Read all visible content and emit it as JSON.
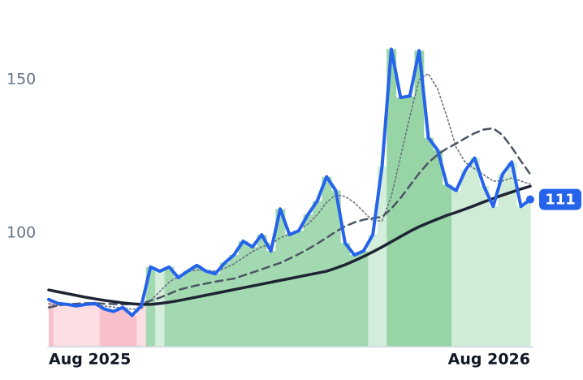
{
  "chart_data": {
    "type": "line",
    "categories": [
      "Aug 2025",
      null,
      null,
      null,
      null,
      null,
      null,
      null,
      null,
      null,
      null,
      null,
      null,
      null,
      null,
      null,
      null,
      null,
      null,
      null,
      null,
      null,
      null,
      null,
      null,
      null,
      null,
      null,
      null,
      null,
      null,
      null,
      null,
      null,
      null,
      null,
      null,
      null,
      null,
      null,
      null,
      null,
      null,
      null,
      null,
      null,
      null,
      null,
      null,
      null,
      null,
      null,
      "Aug 2026"
    ],
    "ylim": [
      63,
      176
    ],
    "yticks": [
      100,
      150
    ],
    "fill_colors": [
      "#f7c0cb",
      "#fcdde3",
      "#fcdde3",
      "#fcdde3",
      "#fcdde3",
      "#fcdde3",
      "#f7c0cb",
      "#f7c0cb",
      "#f7c0cb",
      "#f7c0cb",
      "#fcdde3",
      "#a3d9b1",
      "#d4eedb",
      "#a3d9b1",
      "#a3d9b1",
      "#a3d9b1",
      "#a3d9b1",
      "#a3d9b1",
      "#a3d9b1",
      "#a3d9b1",
      "#a3d9b1",
      "#a3d9b1",
      "#a3d9b1",
      "#a3d9b1",
      "#a3d9b1",
      "#a3d9b1",
      "#a3d9b1",
      "#a3d9b1",
      "#a3d9b1",
      "#a3d9b1",
      "#a3d9b1",
      "#a3d9b1",
      "#a3d9b1",
      "#a3d9b1",
      "#a3d9b1",
      "#d4eedb",
      "#d4eedb",
      "#97d4a6",
      "#97d4a6",
      "#97d4a6",
      "#97d4a6",
      "#97d4a6",
      "#97d4a6",
      "#97d4a6",
      "#d0ecd7",
      "#d0ecd7",
      "#d0ecd7",
      "#d0ecd7",
      "#d0ecd7",
      "#d0ecd7",
      "#d0ecd7",
      "#d0ecd7",
      "#d0ecd7"
    ],
    "series": [
      {
        "color": "#2563eb",
        "width": 4,
        "dash": "none",
        "values": [
          78.4,
          77.1,
          76.8,
          76.3,
          76.8,
          77.1,
          75.3,
          74.5,
          75.8,
          73.2,
          76.3,
          89,
          87.6,
          89,
          85.5,
          87.6,
          89.5,
          87.6,
          86.8,
          90.3,
          92.9,
          97.4,
          95.5,
          99.5,
          94.2,
          107.9,
          99.5,
          100.8,
          106.1,
          110.5,
          118.4,
          113.9,
          96.8,
          92.9,
          94.2,
          99.5,
          121.8,
          160,
          144.2,
          144.7,
          159.5,
          131.1,
          127.1,
          115.8,
          113.9,
          120.5,
          124.5,
          115.3,
          108.7,
          119.2,
          123.2,
          108.7,
          111
        ],
        "value_label_index": 52
      },
      {
        "color": "#1e2433",
        "width": 3.5,
        "dash": "none",
        "values": [
          81.5,
          80.9,
          80.3,
          79.7,
          79.1,
          78.6,
          78.1,
          77.7,
          77.3,
          77.0,
          76.8,
          76.8,
          77.1,
          77.5,
          78.0,
          78.6,
          79.2,
          79.8,
          80.4,
          81.0,
          81.6,
          82.2,
          82.8,
          83.4,
          84.0,
          84.6,
          85.2,
          85.8,
          86.4,
          87.0,
          87.6,
          88.6,
          89.7,
          91.0,
          92.4,
          93.9,
          95.5,
          97.2,
          98.9,
          100.6,
          102.1,
          103.4,
          104.6,
          105.8,
          106.8,
          107.9,
          109.0,
          110.2,
          111.3,
          112.4,
          113.4,
          114.4,
          115.3
        ]
      },
      {
        "color": "#4b5563",
        "width": 2.5,
        "dash": "9 6",
        "values": [
          75.8,
          76.4,
          76.8,
          77.0,
          77.2,
          77.2,
          77.0,
          76.9,
          76.8,
          76.9,
          77.0,
          78.0,
          79.0,
          80.2,
          81.5,
          82.3,
          83.0,
          83.6,
          84.2,
          84.7,
          85.2,
          86.2,
          87.2,
          88.2,
          89.3,
          90.3,
          91.7,
          93.2,
          94.8,
          96.6,
          98.5,
          100.5,
          102.2,
          103.5,
          104.4,
          104.9,
          105.3,
          108.0,
          111.5,
          115.5,
          119.5,
          123.0,
          125.6,
          127.6,
          129.2,
          131.0,
          132.6,
          133.8,
          134.2,
          132.0,
          128.0,
          123.5,
          119.2
        ]
      },
      {
        "color": "#6b7280",
        "width": 1.6,
        "dash": "2 3",
        "values": [
          77,
          76.5,
          76.8,
          77,
          76.6,
          76.6,
          76.2,
          75.9,
          75.6,
          75.2,
          75.5,
          78,
          81,
          84,
          86,
          87.5,
          88,
          87.8,
          87.7,
          88.5,
          90,
          92,
          94,
          95.5,
          96.5,
          98.5,
          99.8,
          101,
          103,
          106,
          110,
          112.5,
          112,
          110,
          107,
          104,
          104,
          112,
          125,
          138,
          150,
          152,
          147,
          138,
          128,
          123,
          121,
          119,
          117,
          117,
          118,
          117,
          116
        ]
      }
    ]
  }
}
